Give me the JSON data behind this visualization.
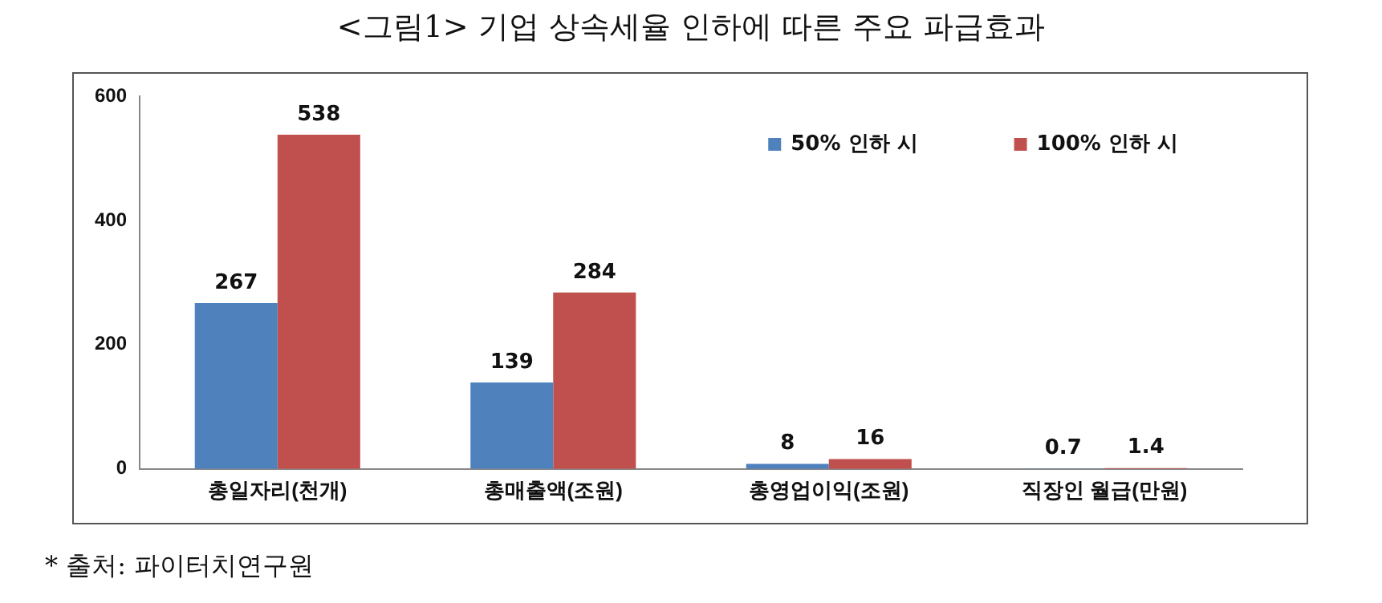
{
  "chart_data": {
    "type": "bar",
    "title": "<그림1> 기업 상속세율 인하에 따른 주요 파급효과",
    "categories": [
      "총일자리(천개)",
      "총매출액(조원)",
      "총영업이익(조원)",
      "직장인 월급(만원)"
    ],
    "series": [
      {
        "name": "50% 인하 시",
        "color": "#4f81bd",
        "values": [
          267,
          139,
          8,
          0.7
        ]
      },
      {
        "name": "100% 인하 시",
        "color": "#c0504d",
        "values": [
          538,
          284,
          16,
          1.4
        ]
      }
    ],
    "ylim": [
      0,
      600
    ],
    "yticks": [
      0,
      200,
      400,
      600
    ],
    "grid": false,
    "legend": "top right",
    "data_labels": true,
    "annotations": [
      "* 출처: 파이터치연구원"
    ]
  }
}
